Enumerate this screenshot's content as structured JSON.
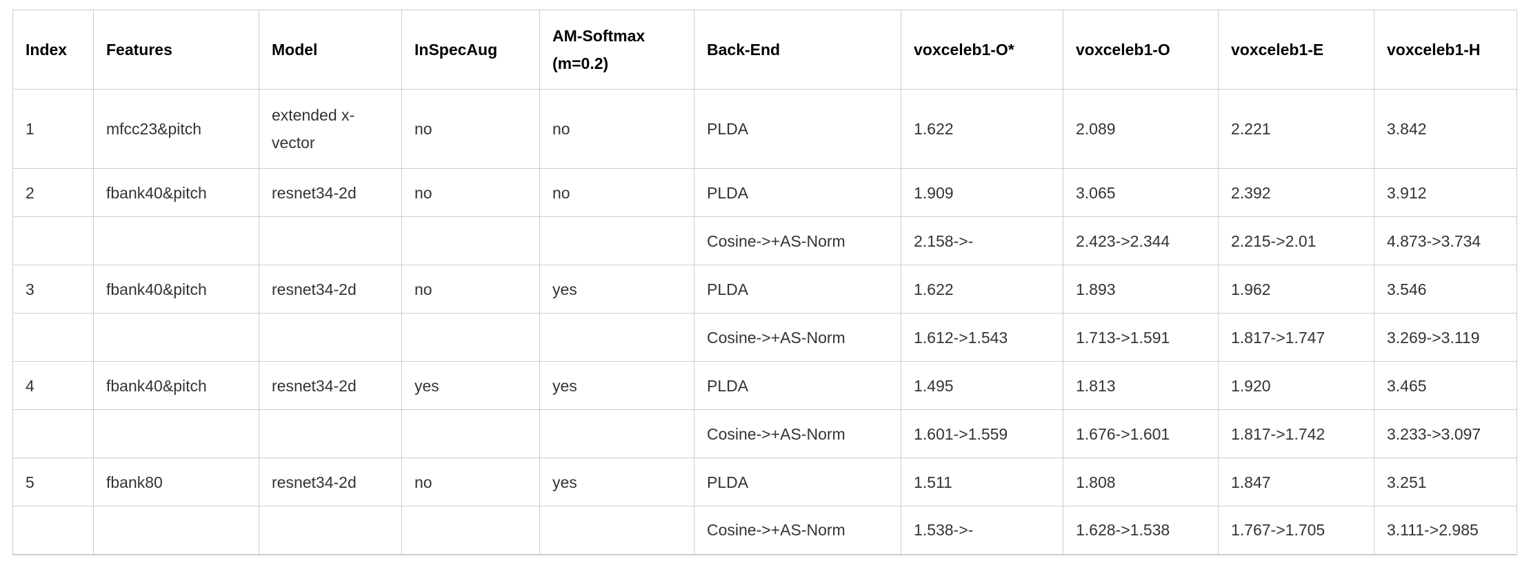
{
  "table": {
    "columns": [
      "Index",
      "Features",
      "Model",
      "InSpecAug",
      "AM-Softmax (m=0.2)",
      "Back-End",
      "voxceleb1-O*",
      "voxceleb1-O",
      "voxceleb1-E",
      "voxceleb1-H"
    ],
    "rows": [
      [
        "1",
        "mfcc23&pitch",
        "extended x-vector",
        "no",
        "no",
        "PLDA",
        "1.622",
        "2.089",
        "2.221",
        "3.842"
      ],
      [
        "2",
        "fbank40&pitch",
        "resnet34-2d",
        "no",
        "no",
        "PLDA",
        "1.909",
        "3.065",
        "2.392",
        "3.912"
      ],
      [
        "",
        "",
        "",
        "",
        "",
        "Cosine->+AS-Norm",
        "2.158->-",
        "2.423->2.344",
        "2.215->2.01",
        "4.873->3.734"
      ],
      [
        "3",
        "fbank40&pitch",
        "resnet34-2d",
        "no",
        "yes",
        "PLDA",
        "1.622",
        "1.893",
        "1.962",
        "3.546"
      ],
      [
        "",
        "",
        "",
        "",
        "",
        "Cosine->+AS-Norm",
        "1.612->1.543",
        "1.713->1.591",
        "1.817->1.747",
        "3.269->3.119"
      ],
      [
        "4",
        "fbank40&pitch",
        "resnet34-2d",
        "yes",
        "yes",
        "PLDA",
        "1.495",
        "1.813",
        "1.920",
        "3.465"
      ],
      [
        "",
        "",
        "",
        "",
        "",
        "Cosine->+AS-Norm",
        "1.601->1.559",
        "1.676->1.601",
        "1.817->1.742",
        "3.233->3.097"
      ],
      [
        "5",
        "fbank80",
        "resnet34-2d",
        "no",
        "yes",
        "PLDA",
        "1.511",
        "1.808",
        "1.847",
        "3.251"
      ],
      [
        "",
        "",
        "",
        "",
        "",
        "Cosine->+AS-Norm",
        "1.538->-",
        "1.628->1.538",
        "1.767->1.705",
        "3.111->2.985"
      ]
    ]
  },
  "colors": {
    "background": "#ffffff",
    "border": "#cccccc",
    "header_text": "#000000",
    "body_text": "#333333"
  }
}
